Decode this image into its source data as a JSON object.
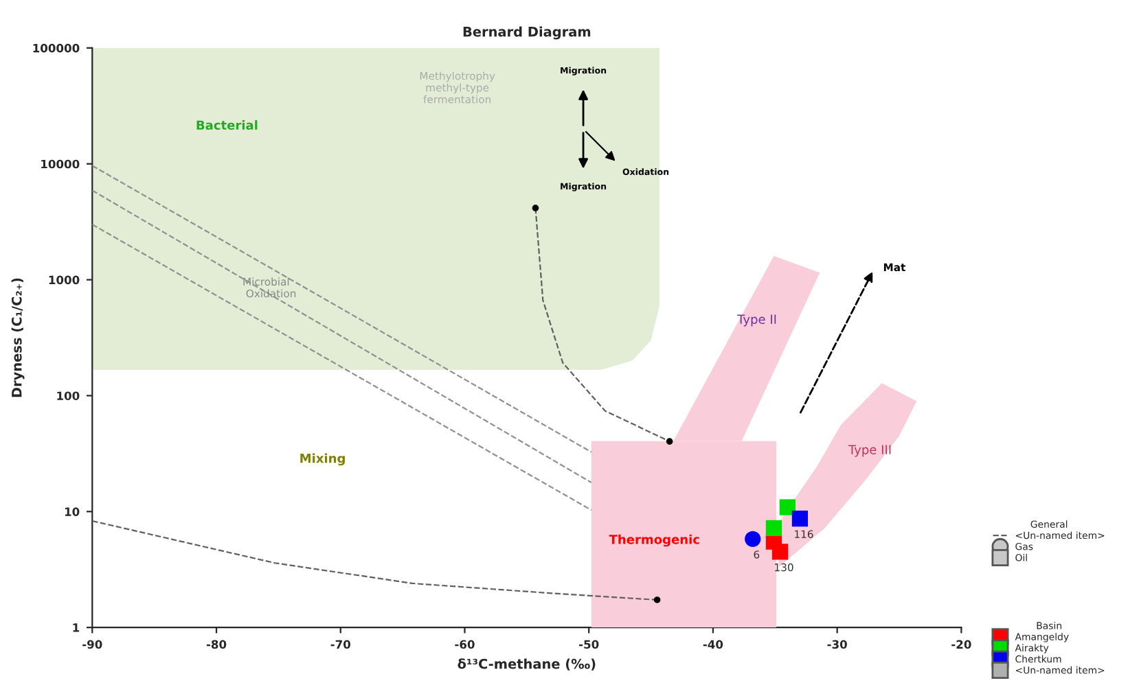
{
  "chart_data": {
    "type": "scatter",
    "title": "Bernard Diagram",
    "xlabel": "δ¹³C-methane (‰)",
    "ylabel": "Dryness (C₁/C₂₊)",
    "log": "y",
    "xlim": [
      -90,
      -20
    ],
    "xticks": [
      -90,
      -80,
      -70,
      -60,
      -50,
      -40,
      -30,
      -20
    ],
    "ylim": [
      1,
      100000
    ],
    "yticks": [
      1,
      10,
      100,
      1000,
      10000,
      100000
    ],
    "grid": false,
    "legend": "right",
    "legend_title": [
      "General",
      "Basin"
    ],
    "series": [
      {
        "type": "area",
        "color": "#e3edd6",
        "x": [
          -90,
          -49,
          -46.5,
          -45,
          -44.3,
          -44.3,
          -90
        ],
        "values": [
          167,
          167,
          200,
          300,
          600,
          100000,
          100000
        ]
      },
      {
        "type": "area",
        "color": "#f9cdda",
        "x": [
          -49.8,
          -34.9,
          -34.9,
          -49.8
        ],
        "values": [
          1,
          1,
          40.5,
          40.5
        ]
      },
      {
        "type": "area",
        "color": "#f9cdda",
        "x": [
          -43.2,
          -37.7,
          -31.4,
          -35.1
        ],
        "values": [
          40.5,
          40.5,
          1150,
          1600
        ]
      },
      {
        "type": "area",
        "color": "#f9cdda",
        "x": [
          -34.7,
          -31.0,
          -27.7,
          -25.0,
          -23.6,
          -26.4,
          -29.7,
          -31.6,
          -33.5,
          -34.9
        ],
        "values": [
          3.3,
          7.2,
          18.8,
          45,
          89.6,
          128,
          56,
          24.8,
          12.5,
          7.2
        ]
      },
      {
        "type": "line",
        "color": "#909090",
        "line_style": "dashed",
        "marker": "none",
        "x": [
          -90,
          -49.8
        ],
        "values": [
          9650,
          32.6
        ]
      },
      {
        "type": "line",
        "color": "#909090",
        "line_style": "dashed",
        "marker": "none",
        "x": [
          -90,
          -49.8
        ],
        "values": [
          5900,
          17.8
        ]
      },
      {
        "type": "line",
        "color": "#909090",
        "line_style": "dashed",
        "marker": "none",
        "x": [
          -90,
          -49.8
        ],
        "values": [
          3000,
          10.3
        ]
      },
      {
        "type": "line",
        "name": "<Un-named item>",
        "color": "#606060",
        "line_style": "dashed",
        "marker": "none",
        "x": [
          -54.3,
          -53.7,
          -52.1,
          -48.7,
          -43.5
        ],
        "values": [
          4160,
          665,
          192,
          74,
          40.3
        ]
      },
      {
        "type": "line",
        "color": "#606060",
        "line_style": "dashed",
        "marker": "none",
        "x": [
          -90,
          -75.3,
          -64.2,
          -53.2,
          -44.5
        ],
        "values": [
          8.3,
          3.6,
          2.4,
          1.98,
          1.73
        ]
      },
      {
        "color": "#000000",
        "marker": "circle",
        "x": [
          -54.3,
          -43.5,
          -44.5
        ],
        "values": [
          4160,
          40.3,
          1.73
        ]
      },
      {
        "name": "Gas",
        "color": "#c8c8c8",
        "marker": "circle"
      },
      {
        "name": "Oil",
        "color": "#c8c8c8",
        "marker": "square"
      },
      {
        "name": "Amangeldy",
        "color": "#ff0000",
        "marker": "square",
        "x": [
          -35.1,
          -34.6
        ],
        "values": [
          5.5,
          4.5
        ]
      },
      {
        "name": "Airakty",
        "color": "#00dd00",
        "marker": "square",
        "x": [
          -35.1,
          -34.0
        ],
        "values": [
          7.2,
          10.9
        ]
      },
      {
        "name": "Chertkum",
        "color": "#0000ee",
        "marker": "square",
        "x": [
          -33.0
        ],
        "values": [
          8.7
        ]
      },
      {
        "color": "#0000ee",
        "marker": "circle",
        "x": [
          -36.8
        ],
        "values": [
          5.8
        ]
      },
      {
        "name": "<Un-named item>",
        "color": "#b0b0b0",
        "marker": "square"
      }
    ],
    "annotations": [
      "Migration",
      "Migration",
      "Oxidation",
      "Bacterial",
      "Mixing",
      "Thermogenic",
      "Type II",
      "Type III",
      "Microbial\n   Oxidation",
      "Methylotrophy\nmethyl-type\nfermentation",
      "Mat",
      {
        "text": "6",
        "x": -36.8,
        "y": 5.8
      },
      {
        "text": "130",
        "x": -34.6,
        "y": 4.5
      },
      {
        "text": "116",
        "x": -33.0,
        "y": 8.7
      }
    ]
  }
}
